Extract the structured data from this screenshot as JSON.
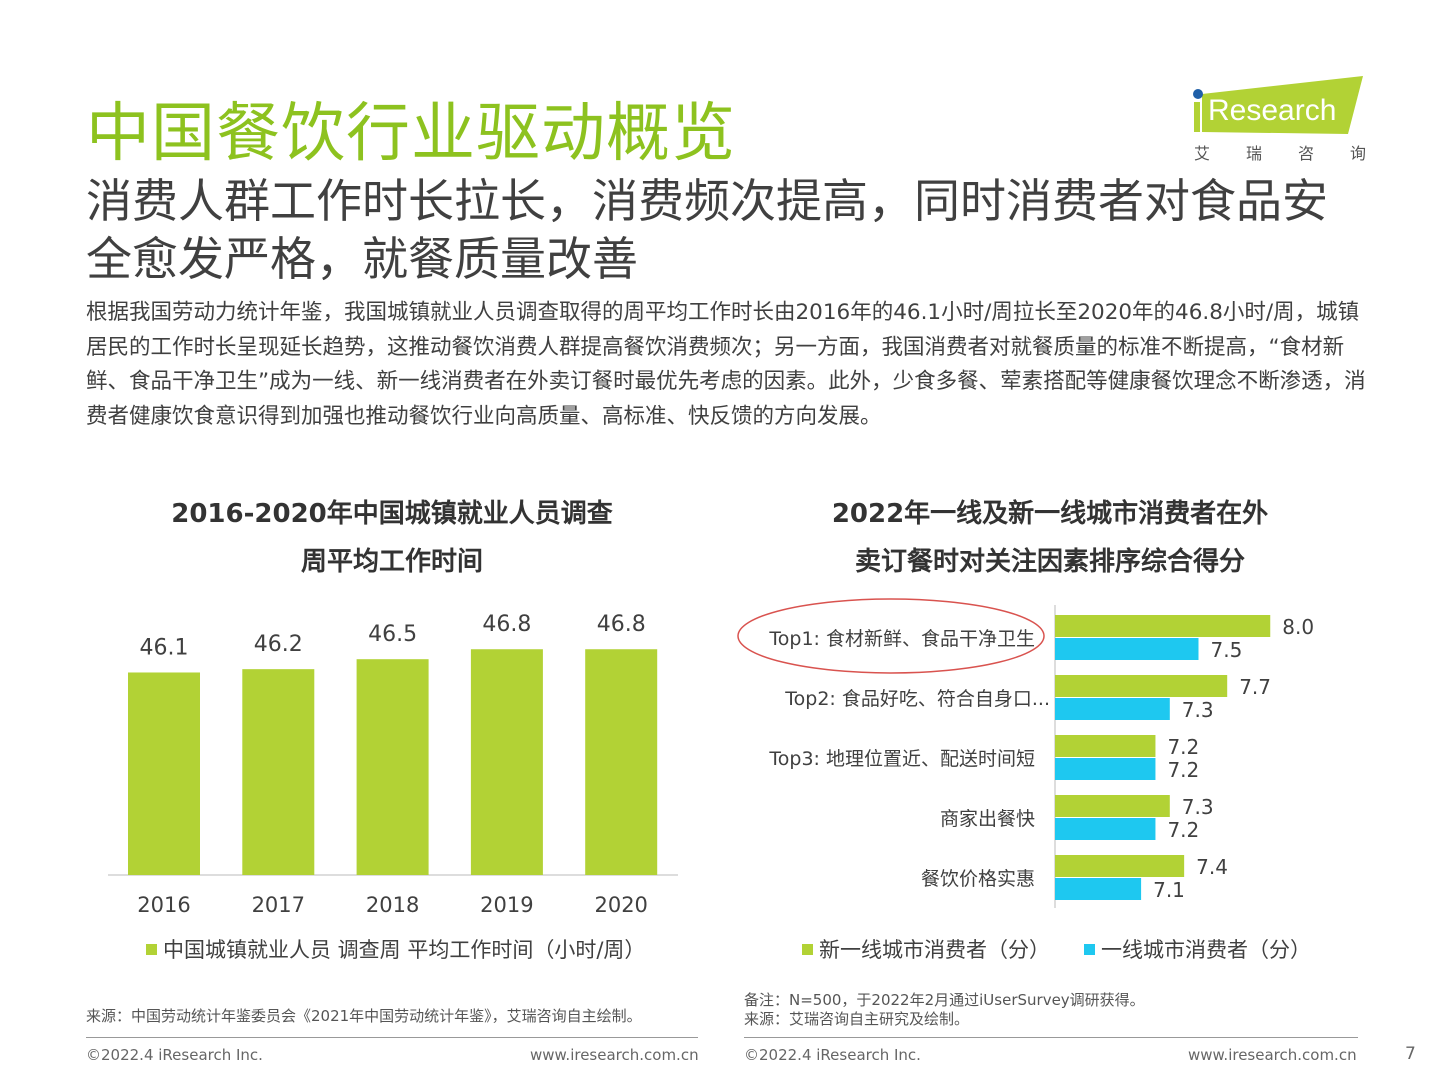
{
  "title": "中国餐饮行业驱动概览",
  "subtitle": "消费人群工作时长拉长，消费频次提高，同时消费者对食品安全愈发严格，就餐质量改善",
  "body": "根据我国劳动力统计年鉴，我国城镇就业人员调查取得的周平均工作时长由2016年的46.1小时/周拉长至2020年的46.8小时/周，城镇居民的工作时长呈现延长趋势，这推动餐饮消费人群提高餐饮消费频次；另一方面，我国消费者对就餐质量的标准不断提高，“食材新鲜、食品干净卫生”成为一线、新一线消费者在外卖订餐时最优先考虑的因素。此外，少食多餐、荤素搭配等健康餐饮理念不断渗透，消费者健康饮食意识得到加强也推动餐饮行业向高质量、高标准、快反馈的方向发展。",
  "logo": {
    "text": "iResearch",
    "cn": [
      "艾",
      "瑞",
      "咨",
      "询"
    ]
  },
  "colors": {
    "green": "#b2d235",
    "blue": "#1ec8f0",
    "title_green": "#8dc21f"
  },
  "chart_data": [
    {
      "type": "bar",
      "title_lines": [
        "2016-2020年中国城镇就业人员调查",
        "周平均工作时间"
      ],
      "categories": [
        "2016",
        "2017",
        "2018",
        "2019",
        "2020"
      ],
      "values": [
        46.1,
        46.2,
        46.5,
        46.8,
        46.8
      ],
      "data_labels": [
        "46.1",
        "46.2",
        "46.5",
        "46.8",
        "46.8"
      ],
      "legend": "中国城镇就业人员 调查周 平均工作时间（小时/周）",
      "ylim": [
        40,
        47
      ],
      "grid": false,
      "color": "#b2d235"
    },
    {
      "type": "bar",
      "orientation": "horizontal",
      "title_lines": [
        "2022年一线及新一线城市消费者在外",
        "卖订餐时对关注因素排序综合得分"
      ],
      "categories": [
        "Top1: 食材新鲜、食品干净卫生",
        "Top2: 食品好吃、符合自身口...",
        "Top3: 地理位置近、配送时间短",
        "商家出餐快",
        "餐饮价格实惠"
      ],
      "series": [
        {
          "name": "新一线城市消费者（分）",
          "values": [
            8.0,
            7.7,
            7.2,
            7.3,
            7.4
          ],
          "labels": [
            "8.0",
            "7.7",
            "7.2",
            "7.3",
            "7.4"
          ],
          "color": "#b2d235"
        },
        {
          "name": "一线城市消费者（分）",
          "values": [
            7.5,
            7.3,
            7.2,
            7.2,
            7.1
          ],
          "labels": [
            "7.5",
            "7.3",
            "7.2",
            "7.2",
            "7.1"
          ],
          "color": "#1ec8f0"
        }
      ],
      "xlim": [
        6.5,
        8.0
      ],
      "grid": false,
      "highlight": "Top1: 食材新鲜、食品干净卫生",
      "legend_placement": "bottom"
    }
  ],
  "left_source": "来源：中国劳动统计年鉴委员会《2021年中国劳动统计年鉴》，艾瑞咨询自主绘制。",
  "right_note": "备注：N=500，于2022年2月通过iUserSurvey调研获得。",
  "right_source": "来源：艾瑞咨询自主研究及绘制。",
  "footer": {
    "copyright": "©2022.4 iResearch Inc.",
    "url": "www.iresearch.com.cn",
    "page": "7"
  }
}
